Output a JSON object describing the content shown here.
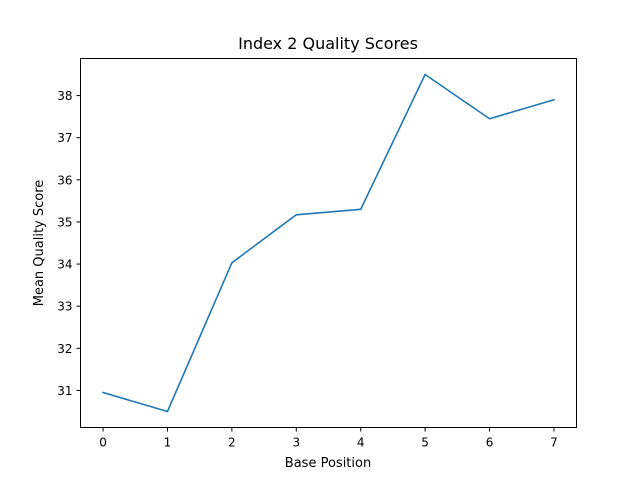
{
  "chart_data": {
    "type": "line",
    "title": "Index 2 Quality Scores",
    "xlabel": "Base Position",
    "ylabel": "Mean Quality Score",
    "x": [
      0,
      1,
      2,
      3,
      4,
      5,
      6,
      7
    ],
    "series": [
      {
        "values": [
          30.95,
          30.5,
          34.03,
          35.17,
          35.3,
          38.5,
          37.45,
          37.9
        ],
        "color": "#1f77b4"
      }
    ],
    "xlim": [
      -0.35,
      7.35
    ],
    "ylim": [
      30.12,
      38.88
    ],
    "xticks": [
      0,
      1,
      2,
      3,
      4,
      5,
      6,
      7
    ],
    "yticks": [
      31,
      32,
      33,
      34,
      35,
      36,
      37,
      38
    ],
    "grid": false,
    "legend": "none"
  }
}
